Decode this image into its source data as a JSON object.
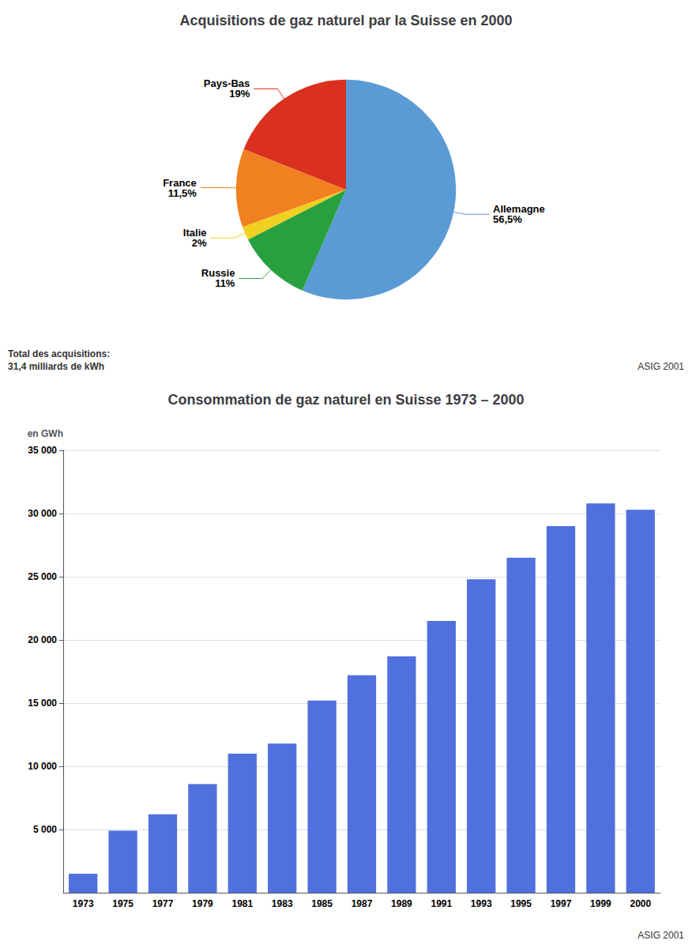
{
  "chart_data": [
    {
      "type": "pie",
      "title": "Acquisitions de gaz naturel par la Suisse en 2000",
      "categories": [
        "Allemagne",
        "Russie",
        "Italie",
        "France",
        "Pays-Bas"
      ],
      "values": [
        56.5,
        11.0,
        2.0,
        11.5,
        19.0
      ],
      "value_labels": [
        "56,5%",
        "11%",
        "2%",
        "11,5%",
        "19%"
      ],
      "colors": [
        "#5b9bd5",
        "#28a040",
        "#f0d020",
        "#f08020",
        "#d93020"
      ],
      "data_labels": true,
      "legend": false,
      "annotations": [
        "Total des acquisitions:\n31,4 milliards de kWh",
        "ASIG 2001"
      ]
    },
    {
      "type": "bar",
      "title": "Consommation de gaz naturel en Suisse 1973 – 2000",
      "categories": [
        "1973",
        "1975",
        "1977",
        "1979",
        "1981",
        "1983",
        "1985",
        "1987",
        "1989",
        "1991",
        "1993",
        "1995",
        "1997",
        "1999",
        "2000"
      ],
      "values": [
        1500,
        4900,
        6200,
        8600,
        11000,
        11800,
        15200,
        17200,
        18700,
        21500,
        24800,
        26500,
        29000,
        30800,
        30300
      ],
      "y_label": "en GWh",
      "ylim": [
        0,
        35000
      ],
      "yticks": [
        {
          "value": 5000,
          "label": "5 000"
        },
        {
          "value": 10000,
          "label": "10 000"
        },
        {
          "value": 15000,
          "label": "15 000"
        },
        {
          "value": 20000,
          "label": "20 000"
        },
        {
          "value": 25000,
          "label": "25 000"
        },
        {
          "value": 30000,
          "label": "30 000"
        },
        {
          "value": 35000,
          "label": "35 000"
        }
      ],
      "grid": true,
      "legend": false,
      "annotations": [
        "ASIG 2001"
      ]
    }
  ]
}
